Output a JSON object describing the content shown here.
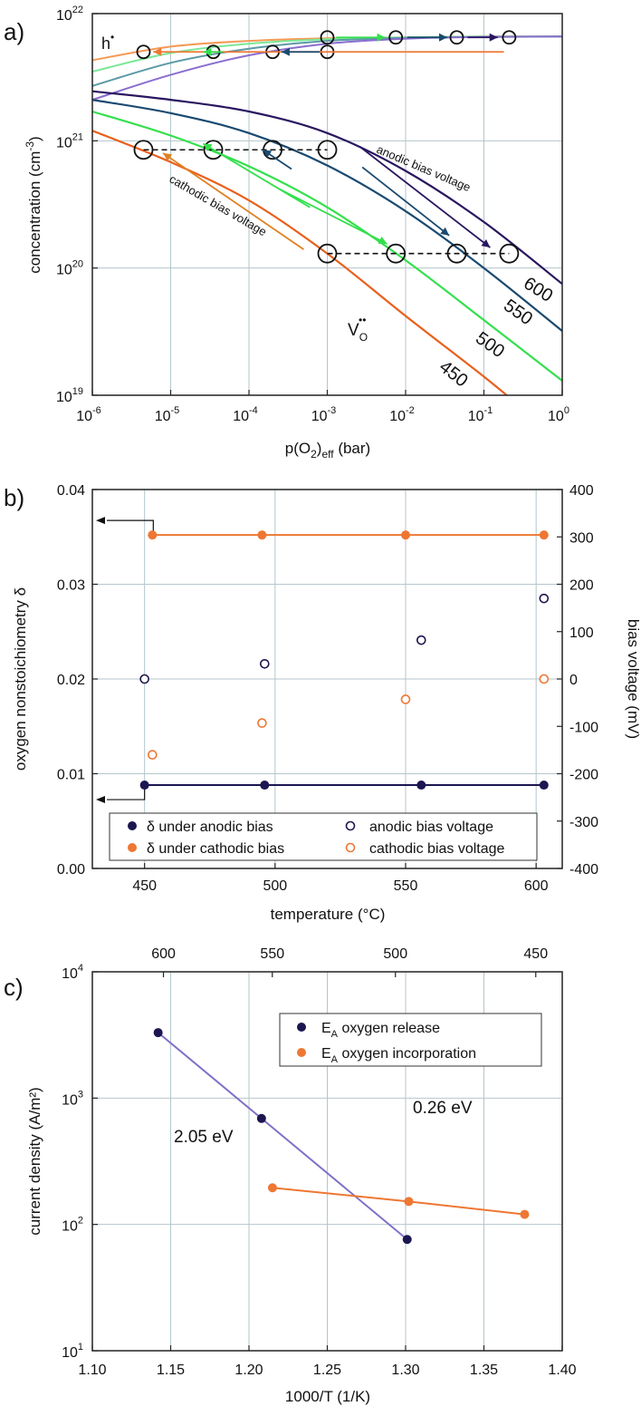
{
  "colors": {
    "T450": "#e8601c",
    "T500": "#33e04c",
    "T550": "#1a4a70",
    "T600": "#2a1660",
    "orange": "#ee7733",
    "navy": "#1c1650",
    "purple": "#8070c8",
    "grid": "#b4c6cc"
  },
  "chart_data": [
    {
      "panel": "a)",
      "type": "line",
      "xscale": "log",
      "yscale": "log",
      "xlim": [
        1e-06,
        1
      ],
      "ylim": [
        1e+19,
        1e+22
      ],
      "xlabel": "p(O2)eff (bar)",
      "ylabel": "concentration (cm-3)",
      "xticks": [
        {
          "v": 1e-06,
          "base": "10",
          "exp": "-6"
        },
        {
          "v": 1e-05,
          "base": "10",
          "exp": "-5"
        },
        {
          "v": 0.0001,
          "base": "10",
          "exp": "-4"
        },
        {
          "v": 0.001,
          "base": "10",
          "exp": "-3"
        },
        {
          "v": 0.01,
          "base": "10",
          "exp": "-2"
        },
        {
          "v": 0.1,
          "base": "10",
          "exp": "-1"
        },
        {
          "v": 1,
          "base": "10",
          "exp": "0"
        }
      ],
      "yticks": [
        {
          "v": 1e+19,
          "base": "10",
          "exp": "19"
        },
        {
          "v": 1e+20,
          "base": "10",
          "exp": "20"
        },
        {
          "v": 1e+21,
          "base": "10",
          "exp": "21"
        },
        {
          "v": 1e+22,
          "base": "10",
          "exp": "22"
        }
      ],
      "vacancy_series": [
        {
          "name": "450",
          "color": "#e8601c",
          "points": [
            [
              1e-06,
              1.2e+21
            ],
            [
              1e-05,
              6.8e+20
            ],
            [
              0.0001,
              3.4e+20
            ],
            [
              0.001,
              1.3e+20
            ],
            [
              0.01,
              4.2e+19
            ],
            [
              0.1,
              1.4e+19
            ],
            [
              0.3,
              8e+18
            ]
          ]
        },
        {
          "name": "500",
          "color": "#33e04c",
          "points": [
            [
              1e-06,
              1.7e+21
            ],
            [
              1e-05,
              1.1e+21
            ],
            [
              0.0001,
              6.3e+20
            ],
            [
              0.001,
              3e+20
            ],
            [
              0.01,
              1.15e+20
            ],
            [
              0.1,
              3.9e+19
            ],
            [
              1,
              1.3e+19
            ]
          ]
        },
        {
          "name": "550",
          "color": "#1a4a70",
          "points": [
            [
              1e-06,
              2.1e+21
            ],
            [
              1e-05,
              1.65e+21
            ],
            [
              0.0001,
              1.15e+21
            ],
            [
              0.001,
              6.4e+20
            ],
            [
              0.01,
              2.8e+20
            ],
            [
              0.1,
              1e+20
            ],
            [
              1,
              3.2e+19
            ]
          ]
        },
        {
          "name": "600",
          "color": "#2a1660",
          "points": [
            [
              1e-06,
              2.45e+21
            ],
            [
              1e-05,
              2.1e+21
            ],
            [
              0.0001,
              1.7e+21
            ],
            [
              0.001,
              1.15e+21
            ],
            [
              0.01,
              5.8e+20
            ],
            [
              0.1,
              2.3e+20
            ],
            [
              1,
              7.5e+19
            ]
          ]
        }
      ],
      "hole_series": [
        {
          "name": "450",
          "color": "#f59a55",
          "points": [
            [
              1e-06,
              4.3e+21
            ],
            [
              1e-05,
              5.5e+21
            ],
            [
              0.0001,
              6.1e+21
            ],
            [
              0.001,
              6.4e+21
            ],
            [
              0.01,
              6.5e+21
            ],
            [
              0.1,
              6.6e+21
            ],
            [
              1,
              6.6e+21
            ]
          ]
        },
        {
          "name": "500",
          "color": "#7ae898",
          "points": [
            [
              1e-06,
              3.5e+21
            ],
            [
              1e-05,
              4.9e+21
            ],
            [
              0.0001,
              5.8e+21
            ],
            [
              0.001,
              6.3e+21
            ],
            [
              0.01,
              6.5e+21
            ],
            [
              0.1,
              6.6e+21
            ],
            [
              1,
              6.6e+21
            ]
          ]
        },
        {
          "name": "550",
          "color": "#5b9aa6",
          "points": [
            [
              1e-06,
              2.7e+21
            ],
            [
              1e-05,
              4.1e+21
            ],
            [
              0.0001,
              5.3e+21
            ],
            [
              0.001,
              6.1e+21
            ],
            [
              0.01,
              6.45e+21
            ],
            [
              0.1,
              6.55e+21
            ],
            [
              1,
              6.6e+21
            ]
          ]
        },
        {
          "name": "600",
          "color": "#8a6ed0",
          "points": [
            [
              1e-06,
              2.1e+21
            ],
            [
              1e-05,
              3.3e+21
            ],
            [
              0.0001,
              4.7e+21
            ],
            [
              0.001,
              5.8e+21
            ],
            [
              0.01,
              6.35e+21
            ],
            [
              0.1,
              6.55e+21
            ],
            [
              1,
              6.6e+21
            ]
          ]
        }
      ],
      "open_markers": [
        {
          "x": 4.5e-06,
          "y": 8.5e+20,
          "r": "lg"
        },
        {
          "x": 3.5e-05,
          "y": 8.5e+20,
          "r": "lg"
        },
        {
          "x": 0.0002,
          "y": 8.5e+20,
          "r": "lg"
        },
        {
          "x": 0.001,
          "y": 8.5e+20,
          "r": "lg"
        },
        {
          "x": 0.001,
          "y": 1.3e+20,
          "r": "lg"
        },
        {
          "x": 0.0075,
          "y": 1.3e+20,
          "r": "lg"
        },
        {
          "x": 0.045,
          "y": 1.3e+20,
          "r": "lg"
        },
        {
          "x": 0.21,
          "y": 1.3e+20,
          "r": "lg"
        },
        {
          "x": 4.5e-06,
          "y": 5e+21,
          "r": "sm"
        },
        {
          "x": 3.5e-05,
          "y": 5e+21,
          "r": "sm"
        },
        {
          "x": 0.0002,
          "y": 5e+21,
          "r": "sm"
        },
        {
          "x": 0.001,
          "y": 5e+21,
          "r": "sm"
        },
        {
          "x": 0.001,
          "y": 6.5e+21,
          "r": "sm"
        },
        {
          "x": 0.0075,
          "y": 6.5e+21,
          "r": "sm"
        },
        {
          "x": 0.045,
          "y": 6.5e+21,
          "r": "sm"
        },
        {
          "x": 0.21,
          "y": 6.5e+21,
          "r": "sm"
        }
      ],
      "dashed_lines": [
        {
          "x1": 4.5e-06,
          "x2": 0.001,
          "y": 8.5e+20
        },
        {
          "x1": 0.001,
          "x2": 0.21,
          "y": 1.3e+20
        }
      ],
      "arrows": [
        {
          "x1": 0.18,
          "y1": 5e+21,
          "x2": 6e-06,
          "y2": 5e+21,
          "color": "#ee7733"
        },
        {
          "x1": 2.6e-05,
          "y1": 5e+21,
          "x2": 4.6e-05,
          "y2": 5e+21,
          "color": "#33e04c",
          "reverse": true
        },
        {
          "x1": 0.0008,
          "y1": 5e+21,
          "x2": 0.00026,
          "y2": 5e+21,
          "color": "#1a4a70"
        },
        {
          "x1": 0.0013,
          "y1": 6.5e+21,
          "x2": 0.0055,
          "y2": 6.5e+21,
          "color": "#33e04c"
        },
        {
          "x1": 0.0105,
          "y1": 6.5e+21,
          "x2": 0.034,
          "y2": 6.5e+21,
          "color": "#1a4a70"
        },
        {
          "x1": 0.062,
          "y1": 6.5e+21,
          "x2": 0.15,
          "y2": 6.5e+21,
          "color": "#2a1660"
        },
        {
          "x1": 0.0026,
          "y1": 9e+20,
          "x2": 0.12,
          "y2": 1.45e+20,
          "color": "#2a1660"
        },
        {
          "x1": 0.0028,
          "y1": 6.2e+20,
          "x2": 0.036,
          "y2": 1.8e+20,
          "color": "#1a4a70"
        },
        {
          "x1": 0.0006,
          "y1": 3e+20,
          "x2": 2.6e-05,
          "y2": 9.5e+20,
          "color": "#33e04c"
        },
        {
          "x1": 0.00024,
          "y1": 4.2e+20,
          "x2": 0.0058,
          "y2": 1.55e+20,
          "color": "#33e04c"
        },
        {
          "x1": 0.00035,
          "y1": 6e+20,
          "x2": 0.00015,
          "y2": 8.5e+20,
          "color": "#1a4a70"
        },
        {
          "x1": 0.0005,
          "y1": 1.4e+20,
          "x2": 8e-06,
          "y2": 8e+20,
          "color": "#e08020"
        }
      ],
      "annotations": {
        "anodic": "anodic bias voltage",
        "cathodic": "cathodic bias voltage",
        "holes_label": "h",
        "holes_sup": "•",
        "vac_label": "V",
        "vac_sub": "O",
        "vac_sup": "••",
        "label450": "450",
        "label500": "500",
        "label550": "550",
        "label600": "600"
      }
    },
    {
      "panel": "b)",
      "type": "scatter",
      "xlim": [
        430,
        610
      ],
      "ylim": [
        0.0,
        0.04
      ],
      "y2lim": [
        -400,
        400
      ],
      "xlabel": "temperature (°C)",
      "ylabel": "oxygen nonstoichiometry δ",
      "y2label": "bias voltage (mV)",
      "xticks": [
        "450",
        "500",
        "550",
        "600"
      ],
      "yticks": [
        "0.00",
        "0.01",
        "0.02",
        "0.03",
        "0.04"
      ],
      "y2ticks": [
        "-400",
        "-300",
        "-200",
        "-100",
        "0",
        "100",
        "200",
        "300",
        "400"
      ],
      "series": [
        {
          "name": "δ under anodic bias",
          "axis": "left",
          "filled": true,
          "color": "#1c1650",
          "x": [
            450,
            496,
            556,
            603
          ],
          "y": [
            0.0088,
            0.0088,
            0.0088,
            0.0088
          ]
        },
        {
          "name": "δ under cathodic bias",
          "axis": "left",
          "filled": true,
          "color": "#ee7733",
          "x": [
            453,
            495,
            550,
            603
          ],
          "y": [
            0.0352,
            0.0352,
            0.0352,
            0.0352
          ]
        },
        {
          "name": "anodic bias voltage",
          "axis": "right",
          "filled": false,
          "color": "#1c1650",
          "x": [
            450,
            496,
            556,
            603
          ],
          "y": [
            0,
            32,
            82,
            170
          ]
        },
        {
          "name": "cathodic bias voltage",
          "axis": "right",
          "filled": false,
          "color": "#ee7733",
          "x": [
            453,
            495,
            550,
            603
          ],
          "y": [
            -160,
            -93,
            -43,
            0
          ]
        }
      ]
    },
    {
      "panel": "c)",
      "type": "line",
      "yscale": "log",
      "xlim": [
        1.1,
        1.4
      ],
      "ylim": [
        10,
        10000
      ],
      "xlabel": "1000/T (1/K)",
      "ylabel": "current density (A/m²)",
      "xticks": [
        "1.10",
        "1.15",
        "1.20",
        "1.25",
        "1.30",
        "1.35",
        "1.40"
      ],
      "top_xlabel_ticks": [
        {
          "label": "600",
          "x": 1.1454
        },
        {
          "label": "550",
          "x": 1.2149
        },
        {
          "label": "500",
          "x": 1.2935
        },
        {
          "label": "450",
          "x": 1.3831
        }
      ],
      "yticks": [
        {
          "v": 10,
          "base": "10",
          "exp": "1"
        },
        {
          "v": 100,
          "base": "10",
          "exp": "2"
        },
        {
          "v": 1000,
          "base": "10",
          "exp": "3"
        },
        {
          "v": 10000,
          "base": "10",
          "exp": "4"
        }
      ],
      "series": [
        {
          "name": "E",
          "sub": "A",
          "rest": " oxygen release",
          "color": "#1c1650",
          "line_color": "#8070c8",
          "x": [
            1.142,
            1.208,
            1.301
          ],
          "y": [
            3300,
            690,
            76
          ],
          "fit_label": "2.05 eV"
        },
        {
          "name": "E",
          "sub": "A",
          "rest": " oxygen incorporation",
          "color": "#ee7733",
          "line_color": "#ee7733",
          "x": [
            1.215,
            1.302,
            1.376
          ],
          "y": [
            195,
            152,
            120
          ],
          "fit_label": "0.26 eV"
        }
      ]
    }
  ]
}
